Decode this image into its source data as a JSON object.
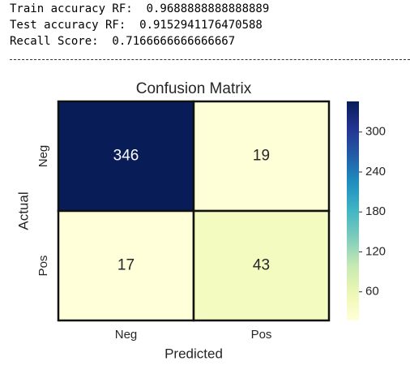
{
  "output_lines": [
    "Train accuracy RF:  0.9688888888888889",
    "Test accuracy RF:  0.9152941176470588",
    "Recall Score:  0.7166666666666667"
  ],
  "chart_data": {
    "type": "heatmap",
    "title": "Confusion Matrix",
    "xlabel": "Predicted",
    "ylabel": "Actual",
    "x_categories": [
      "Neg",
      "Pos"
    ],
    "y_categories": [
      "Neg",
      "Pos"
    ],
    "values": [
      [
        346,
        19
      ],
      [
        17,
        43
      ]
    ],
    "clim": [
      17,
      346
    ],
    "cticks": [
      60,
      120,
      180,
      240,
      300
    ],
    "colormap": [
      "#ffffd9",
      "#edf8b1",
      "#c7e9b4",
      "#7fcdbb",
      "#41b6c4",
      "#1d91c0",
      "#225ea8",
      "#253494",
      "#081d58"
    ]
  }
}
